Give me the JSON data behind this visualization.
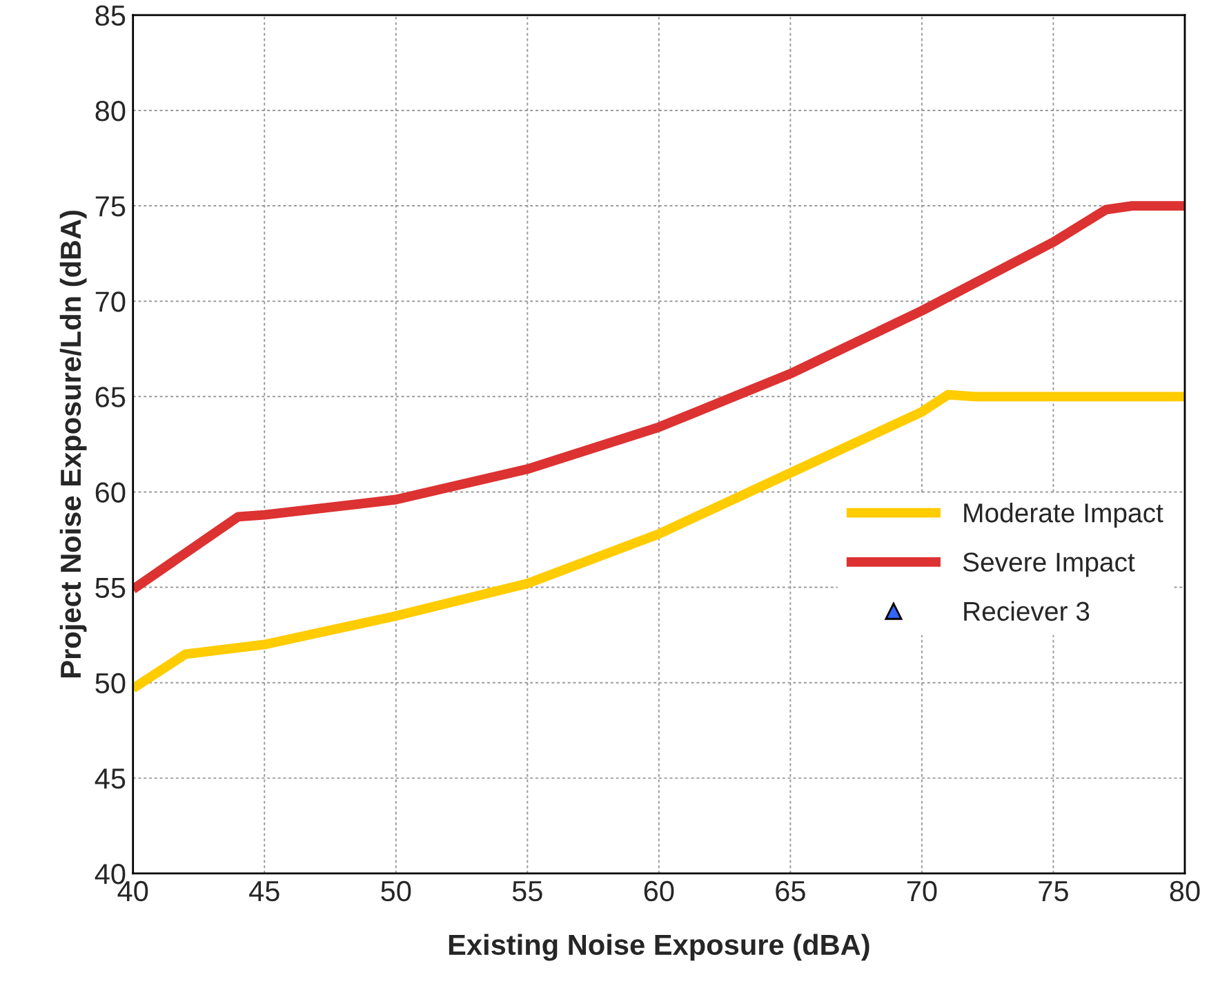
{
  "chart_data": {
    "type": "line",
    "xlabel": "Existing Noise Exposure (dBA)",
    "ylabel": "Project Noise Exposure/Ldn (dBA)",
    "xlim": [
      40,
      80
    ],
    "ylim": [
      40,
      85
    ],
    "xticks": [
      40,
      45,
      50,
      55,
      60,
      65,
      70,
      75,
      80
    ],
    "yticks": [
      40,
      45,
      50,
      55,
      60,
      65,
      70,
      75,
      80,
      85
    ],
    "grid": true,
    "legend": "right",
    "marker": "none",
    "line_style": "solid",
    "series": [
      {
        "name": "Moderate Impact",
        "color": "#ffcc00",
        "x": [
          40,
          42,
          45,
          50,
          55,
          60,
          65,
          70,
          71,
          72,
          80
        ],
        "values": [
          49.7,
          51.5,
          52.0,
          53.5,
          55.2,
          57.8,
          61.0,
          64.2,
          65.1,
          65,
          65
        ]
      },
      {
        "name": "Severe Impact",
        "color": "#dc3232",
        "x": [
          40,
          42,
          44,
          45,
          50,
          55,
          60,
          65,
          70,
          75,
          77,
          78,
          80
        ],
        "values": [
          54.9,
          56.8,
          58.7,
          58.8,
          59.6,
          61.2,
          63.4,
          66.2,
          69.5,
          73.1,
          74.8,
          75,
          75
        ]
      },
      {
        "name": "Reciever 3",
        "type": "scatter",
        "marker": "triangle",
        "color": "#3366ff"
      }
    ]
  }
}
